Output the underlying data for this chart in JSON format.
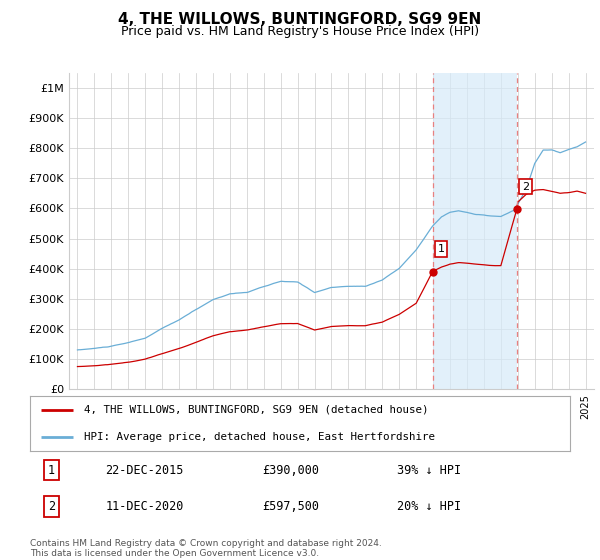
{
  "title": "4, THE WILLOWS, BUNTINGFORD, SG9 9EN",
  "subtitle": "Price paid vs. HM Land Registry's House Price Index (HPI)",
  "title_fontsize": 11,
  "subtitle_fontsize": 9,
  "ylabel_ticks": [
    "£0",
    "£100K",
    "£200K",
    "£300K",
    "£400K",
    "£500K",
    "£600K",
    "£700K",
    "£800K",
    "£900K",
    "£1M"
  ],
  "ytick_vals": [
    0,
    100000,
    200000,
    300000,
    400000,
    500000,
    600000,
    700000,
    800000,
    900000,
    1000000
  ],
  "ylim": [
    0,
    1050000
  ],
  "hpi_color": "#6aaed6",
  "hpi_fill_color": "#d6eaf8",
  "price_color": "#cc0000",
  "sale1_date": "22-DEC-2015",
  "sale1_price": 390000,
  "sale1_label": "39% ↓ HPI",
  "sale1_num": "1",
  "sale2_date": "11-DEC-2020",
  "sale2_price": 597500,
  "sale2_label": "20% ↓ HPI",
  "sale2_num": "2",
  "vline_color": "#e88080",
  "legend_label1": "4, THE WILLOWS, BUNTINGFORD, SG9 9EN (detached house)",
  "legend_label2": "HPI: Average price, detached house, East Hertfordshire",
  "footnote": "Contains HM Land Registry data © Crown copyright and database right 2024.\nThis data is licensed under the Open Government Licence v3.0.",
  "background_color": "#ffffff",
  "grid_color": "#cccccc",
  "sale1_x": 2015.97,
  "sale2_x": 2020.95
}
